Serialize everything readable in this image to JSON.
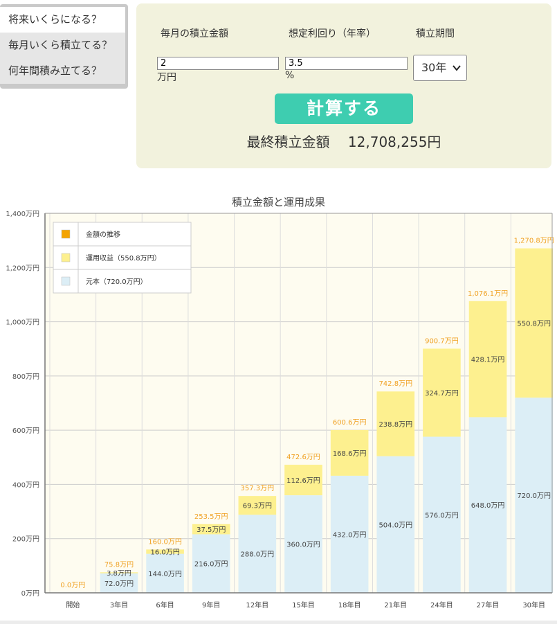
{
  "tabs": [
    {
      "label": "将来いくらになる？",
      "active": true
    },
    {
      "label": "毎月いくら積立てる？",
      "active": false
    },
    {
      "label": "何年間積み立てる？",
      "active": false
    }
  ],
  "calculator": {
    "monthly_label": "毎月の積立金額",
    "rate_label": "想定利回り（年率）",
    "period_label": "積立期間",
    "monthly_value": "2",
    "monthly_unit": "万円",
    "rate_value": "3.5",
    "rate_unit": "%",
    "period_value": "30年",
    "calc_button": "計算する",
    "result_label": "最終積立金額",
    "result_value": "12,708,255円"
  },
  "colors": {
    "principal": "#dceef6",
    "profit": "#fdf08f",
    "total_label": "#f0a020",
    "trend_legend": "#f4a300",
    "plot_bg": "#fefcf0"
  },
  "chart_data": {
    "type": "bar",
    "stacked": true,
    "title": "積立金額と運用成果",
    "categories": [
      "開始",
      "3年目",
      "6年目",
      "9年目",
      "12年目",
      "15年目",
      "18年目",
      "21年目",
      "24年目",
      "27年目",
      "30年目"
    ],
    "series": [
      {
        "name": "元本（720.0万円）",
        "values": [
          0,
          72.0,
          144.0,
          216.0,
          288.0,
          360.0,
          432.0,
          504.0,
          576.0,
          648.0,
          720.0
        ],
        "labels": [
          "",
          "72.0万円",
          "144.0万円",
          "216.0万円",
          "288.0万円",
          "360.0万円",
          "432.0万円",
          "504.0万円",
          "576.0万円",
          "648.0万円",
          "720.0万円"
        ]
      },
      {
        "name": "運用収益（550.8万円）",
        "values": [
          0,
          3.8,
          16.0,
          37.5,
          69.3,
          112.6,
          168.6,
          238.8,
          324.7,
          428.1,
          550.8
        ],
        "labels": [
          "",
          "3.8万円",
          "16.0万円",
          "37.5万円",
          "69.3万円",
          "112.6万円",
          "168.6万円",
          "238.8万円",
          "324.7万円",
          "428.1万円",
          "550.8万円"
        ]
      }
    ],
    "totals": [
      0,
      75.8,
      160.0,
      253.5,
      357.3,
      472.6,
      600.6,
      742.8,
      900.7,
      1076.1,
      1270.8
    ],
    "total_labels": [
      "0.0万円",
      "75.8万円",
      "160.0万円",
      "253.5万円",
      "357.3万円",
      "472.6万円",
      "600.6万円",
      "742.8万円",
      "900.7万円",
      "1,076.1万円",
      "1,270.8万円"
    ],
    "legend": [
      "金額の推移",
      "運用収益（550.8万円）",
      "元本（720.0万円）"
    ],
    "legend_position": "top-left",
    "ylim": [
      0,
      1400
    ],
    "yticks": [
      0,
      200,
      400,
      600,
      800,
      1000,
      1200,
      1400
    ],
    "ytick_labels": [
      "0万円",
      "200万円",
      "400万円",
      "600万円",
      "800万円",
      "1,000万円",
      "1,200万円",
      "1,400万円"
    ],
    "grid": true
  }
}
